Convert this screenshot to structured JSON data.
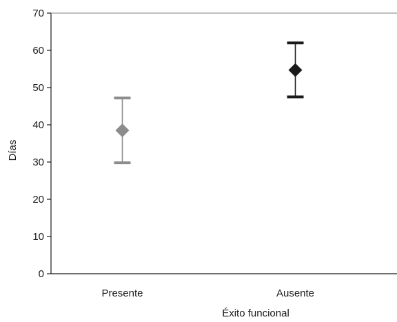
{
  "chart_data": {
    "type": "scatter",
    "title": "",
    "xlabel": "Éxito funcional",
    "ylabel": "Días",
    "ylim": [
      0,
      70
    ],
    "yticks": [
      0,
      10,
      20,
      30,
      40,
      50,
      60,
      70
    ],
    "categories": [
      "Presente",
      "Ausente"
    ],
    "points": [
      {
        "category": "Presente",
        "value": 38.5,
        "lower": 29.8,
        "upper": 47.2,
        "color": "#8c8c8c",
        "marker": "diamond"
      },
      {
        "category": "Ausente",
        "value": 54.7,
        "lower": 47.5,
        "upper": 62.0,
        "color": "#1a1a1a",
        "marker": "diamond"
      }
    ],
    "grid": false,
    "legend": "none"
  }
}
